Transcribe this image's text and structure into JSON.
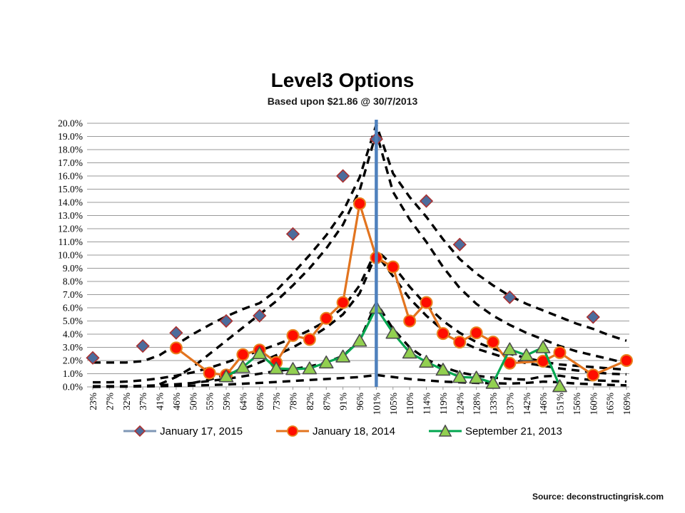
{
  "footer": {
    "source": "Source: deconstructingrisk.com"
  },
  "chart_data": {
    "type": "line",
    "title": "Level3 Options",
    "subtitle": "Based upon $21.86 @ 30/7/2013",
    "grid": "horizontal",
    "legend_position": "bottom",
    "x_categories": [
      "23%",
      "27%",
      "32%",
      "37%",
      "41%",
      "46%",
      "50%",
      "55%",
      "59%",
      "64%",
      "69%",
      "73%",
      "78%",
      "82%",
      "87%",
      "91%",
      "96%",
      "101%",
      "105%",
      "110%",
      "114%",
      "119%",
      "124%",
      "128%",
      "133%",
      "137%",
      "142%",
      "146%",
      "151%",
      "156%",
      "160%",
      "165%",
      "169%"
    ],
    "y_axis": {
      "min": 0,
      "max": 20,
      "tick_step": 1,
      "tick_labels": [
        "20.0%",
        "19.0%",
        "18.0%",
        "17.0%",
        "16.0%",
        "15.0%",
        "14.0%",
        "13.0%",
        "12.0%",
        "11.0%",
        "10.0%",
        "9.0%",
        "8.0%",
        "7.0%",
        "6.0%",
        "5.0%",
        "4.0%",
        "3.0%",
        "2.0%",
        "1.0%",
        "0.0%"
      ]
    },
    "reference_line": {
      "category": "101%",
      "color": "#4f81bd"
    },
    "series": [
      {
        "name": "January 17, 2015",
        "marker": "diamond",
        "line": false,
        "legend_line_color": "#7f97b6",
        "marker_fill": "#4c6c9c",
        "marker_stroke": "#aa3232",
        "points": [
          [
            "23%",
            2.2
          ],
          [
            "37%",
            3.1
          ],
          [
            "46%",
            4.1
          ],
          [
            "59%",
            5.0
          ],
          [
            "69%",
            5.4
          ],
          [
            "78%",
            11.6
          ],
          [
            "91%",
            16.0
          ],
          [
            "101%",
            18.8
          ],
          [
            "114%",
            14.1
          ],
          [
            "124%",
            10.8
          ],
          [
            "137%",
            6.8
          ],
          [
            "160%",
            5.3
          ]
        ]
      },
      {
        "name": "January 18, 2014",
        "marker": "circle",
        "line": true,
        "line_color": "#e2741f",
        "legend_line_color": "#e2741f",
        "marker_fill": "#ff0d00",
        "marker_stroke": "#e8821e",
        "points": [
          [
            "46%",
            2.95
          ],
          [
            "55%",
            1.05
          ],
          [
            "59%",
            0.9
          ],
          [
            "64%",
            2.45
          ],
          [
            "69%",
            2.8
          ],
          [
            "73%",
            1.85
          ],
          [
            "78%",
            3.9
          ],
          [
            "82%",
            3.6
          ],
          [
            "87%",
            5.2
          ],
          [
            "91%",
            6.4
          ],
          [
            "96%",
            13.9
          ],
          [
            "101%",
            9.8
          ],
          [
            "105%",
            9.1
          ],
          [
            "110%",
            5.0
          ],
          [
            "114%",
            6.4
          ],
          [
            "119%",
            4.05
          ],
          [
            "124%",
            3.4
          ],
          [
            "128%",
            4.1
          ],
          [
            "133%",
            3.4
          ],
          [
            "137%",
            1.8
          ],
          [
            "146%",
            1.95
          ],
          [
            "151%",
            2.6
          ],
          [
            "160%",
            0.9
          ],
          [
            "169%",
            2.0
          ]
        ]
      },
      {
        "name": "September 21, 2013",
        "marker": "triangle",
        "line": true,
        "line_color": "#00a64f",
        "legend_line_color": "#00a64f",
        "marker_fill": "#92d050",
        "marker_stroke": "#4d4d4d",
        "points": [
          [
            "59%",
            0.8
          ],
          [
            "64%",
            1.5
          ],
          [
            "69%",
            2.55
          ],
          [
            "73%",
            1.4
          ],
          [
            "78%",
            1.35
          ],
          [
            "82%",
            1.4
          ],
          [
            "87%",
            1.85
          ],
          [
            "91%",
            2.3
          ],
          [
            "96%",
            3.5
          ],
          [
            "101%",
            6.0
          ],
          [
            "105%",
            4.1
          ],
          [
            "110%",
            2.6
          ],
          [
            "114%",
            1.9
          ],
          [
            "119%",
            1.3
          ],
          [
            "124%",
            0.75
          ],
          [
            "128%",
            0.7
          ],
          [
            "133%",
            0.3
          ],
          [
            "137%",
            2.85
          ],
          [
            "142%",
            2.4
          ],
          [
            "146%",
            3.0
          ],
          [
            "151%",
            0.05
          ]
        ]
      }
    ],
    "fitted_curves_dashed": [
      {
        "color": "#000000",
        "points": [
          [
            "23%",
            1.85
          ],
          [
            "27%",
            1.85
          ],
          [
            "32%",
            1.85
          ],
          [
            "37%",
            1.95
          ],
          [
            "41%",
            2.4
          ],
          [
            "46%",
            3.2
          ],
          [
            "50%",
            4.0
          ],
          [
            "55%",
            4.7
          ],
          [
            "59%",
            5.35
          ],
          [
            "64%",
            5.9
          ],
          [
            "69%",
            6.35
          ],
          [
            "73%",
            7.3
          ],
          [
            "78%",
            8.6
          ],
          [
            "82%",
            10.0
          ],
          [
            "87%",
            11.5
          ],
          [
            "91%",
            13.3
          ],
          [
            "96%",
            15.9
          ],
          [
            "101%",
            19.9
          ],
          [
            "105%",
            16.2
          ],
          [
            "110%",
            14.4
          ],
          [
            "114%",
            12.9
          ],
          [
            "119%",
            11.2
          ],
          [
            "124%",
            9.7
          ],
          [
            "128%",
            8.6
          ],
          [
            "133%",
            7.7
          ],
          [
            "137%",
            6.9
          ],
          [
            "142%",
            6.3
          ],
          [
            "146%",
            5.8
          ],
          [
            "151%",
            5.3
          ],
          [
            "156%",
            4.8
          ],
          [
            "160%",
            4.4
          ],
          [
            "165%",
            3.9
          ],
          [
            "169%",
            3.5
          ]
        ]
      },
      {
        "color": "#000000",
        "points": [
          [
            "41%",
            0.2
          ],
          [
            "46%",
            0.75
          ],
          [
            "50%",
            1.5
          ],
          [
            "55%",
            2.5
          ],
          [
            "59%",
            3.5
          ],
          [
            "64%",
            4.5
          ],
          [
            "69%",
            5.5
          ],
          [
            "73%",
            6.5
          ],
          [
            "78%",
            7.7
          ],
          [
            "82%",
            9.0
          ],
          [
            "87%",
            10.5
          ],
          [
            "91%",
            12.3
          ],
          [
            "96%",
            14.9
          ],
          [
            "101%",
            19.3
          ],
          [
            "105%",
            14.8
          ],
          [
            "110%",
            12.7
          ],
          [
            "114%",
            11.0
          ],
          [
            "119%",
            9.1
          ],
          [
            "124%",
            7.5
          ],
          [
            "128%",
            6.3
          ],
          [
            "133%",
            5.4
          ],
          [
            "137%",
            4.7
          ],
          [
            "142%",
            4.1
          ],
          [
            "146%",
            3.6
          ],
          [
            "151%",
            3.1
          ],
          [
            "156%",
            2.7
          ],
          [
            "160%",
            2.4
          ],
          [
            "165%",
            2.1
          ],
          [
            "169%",
            1.8
          ]
        ]
      },
      {
        "color": "#000000",
        "points": [
          [
            "23%",
            0.35
          ],
          [
            "27%",
            0.35
          ],
          [
            "32%",
            0.4
          ],
          [
            "37%",
            0.5
          ],
          [
            "41%",
            0.65
          ],
          [
            "46%",
            0.85
          ],
          [
            "50%",
            1.1
          ],
          [
            "55%",
            1.45
          ],
          [
            "59%",
            1.85
          ],
          [
            "64%",
            2.3
          ],
          [
            "69%",
            2.75
          ],
          [
            "73%",
            3.2
          ],
          [
            "78%",
            3.7
          ],
          [
            "82%",
            4.3
          ],
          [
            "87%",
            5.0
          ],
          [
            "91%",
            6.0
          ],
          [
            "96%",
            7.7
          ],
          [
            "101%",
            10.4
          ],
          [
            "105%",
            9.2
          ],
          [
            "110%",
            7.6
          ],
          [
            "114%",
            6.2
          ],
          [
            "119%",
            5.0
          ],
          [
            "124%",
            4.1
          ],
          [
            "128%",
            3.4
          ],
          [
            "133%",
            2.9
          ],
          [
            "137%",
            2.5
          ],
          [
            "142%",
            2.2
          ],
          [
            "146%",
            1.9
          ],
          [
            "151%",
            1.7
          ],
          [
            "156%",
            1.6
          ],
          [
            "160%",
            1.5
          ],
          [
            "165%",
            1.4
          ],
          [
            "169%",
            1.3
          ]
        ]
      },
      {
        "color": "#000000",
        "points": [
          [
            "50%",
            0.3
          ],
          [
            "55%",
            0.55
          ],
          [
            "59%",
            0.9
          ],
          [
            "64%",
            1.35
          ],
          [
            "69%",
            1.85
          ],
          [
            "73%",
            2.4
          ],
          [
            "78%",
            3.0
          ],
          [
            "82%",
            3.7
          ],
          [
            "87%",
            4.5
          ],
          [
            "91%",
            5.5
          ],
          [
            "96%",
            7.1
          ],
          [
            "101%",
            10.1
          ],
          [
            "105%",
            8.4
          ],
          [
            "110%",
            6.7
          ],
          [
            "114%",
            5.4
          ],
          [
            "119%",
            4.3
          ],
          [
            "124%",
            3.5
          ],
          [
            "128%",
            2.9
          ],
          [
            "133%",
            2.5
          ],
          [
            "137%",
            2.1
          ],
          [
            "142%",
            1.8
          ],
          [
            "146%",
            1.6
          ],
          [
            "151%",
            1.4
          ],
          [
            "156%",
            1.25
          ],
          [
            "160%",
            1.1
          ],
          [
            "165%",
            1.0
          ],
          [
            "169%",
            0.95
          ]
        ]
      },
      {
        "color": "#000000",
        "points": [
          [
            "23%",
            0.05
          ],
          [
            "32%",
            0.05
          ],
          [
            "41%",
            0.12
          ],
          [
            "46%",
            0.2
          ],
          [
            "50%",
            0.3
          ],
          [
            "55%",
            0.45
          ],
          [
            "59%",
            0.6
          ],
          [
            "64%",
            0.8
          ],
          [
            "69%",
            1.0
          ],
          [
            "73%",
            1.2
          ],
          [
            "78%",
            1.35
          ],
          [
            "82%",
            1.55
          ],
          [
            "87%",
            1.85
          ],
          [
            "91%",
            2.35
          ],
          [
            "96%",
            3.5
          ],
          [
            "101%",
            6.4
          ],
          [
            "105%",
            4.4
          ],
          [
            "110%",
            3.0
          ],
          [
            "114%",
            2.1
          ],
          [
            "119%",
            1.5
          ],
          [
            "124%",
            1.1
          ],
          [
            "128%",
            0.85
          ],
          [
            "133%",
            0.7
          ],
          [
            "137%",
            0.6
          ],
          [
            "142%",
            0.55
          ],
          [
            "146%",
            0.8
          ],
          [
            "151%",
            0.85
          ],
          [
            "156%",
            0.65
          ],
          [
            "160%",
            0.5
          ],
          [
            "165%",
            0.45
          ],
          [
            "169%",
            0.4
          ]
        ]
      },
      {
        "color": "#000000",
        "points": [
          [
            "23%",
            0.0
          ],
          [
            "32%",
            0.02
          ],
          [
            "41%",
            0.05
          ],
          [
            "50%",
            0.1
          ],
          [
            "59%",
            0.18
          ],
          [
            "69%",
            0.3
          ],
          [
            "78%",
            0.45
          ],
          [
            "87%",
            0.6
          ],
          [
            "96%",
            0.75
          ],
          [
            "101%",
            0.9
          ],
          [
            "105%",
            0.75
          ],
          [
            "110%",
            0.6
          ],
          [
            "114%",
            0.5
          ],
          [
            "119%",
            0.4
          ],
          [
            "124%",
            0.35
          ],
          [
            "128%",
            0.3
          ],
          [
            "133%",
            0.28
          ],
          [
            "137%",
            0.25
          ],
          [
            "142%",
            0.3
          ],
          [
            "146%",
            0.4
          ],
          [
            "151%",
            0.35
          ],
          [
            "156%",
            0.25
          ],
          [
            "160%",
            0.2
          ],
          [
            "165%",
            0.15
          ],
          [
            "169%",
            0.12
          ]
        ]
      }
    ]
  }
}
